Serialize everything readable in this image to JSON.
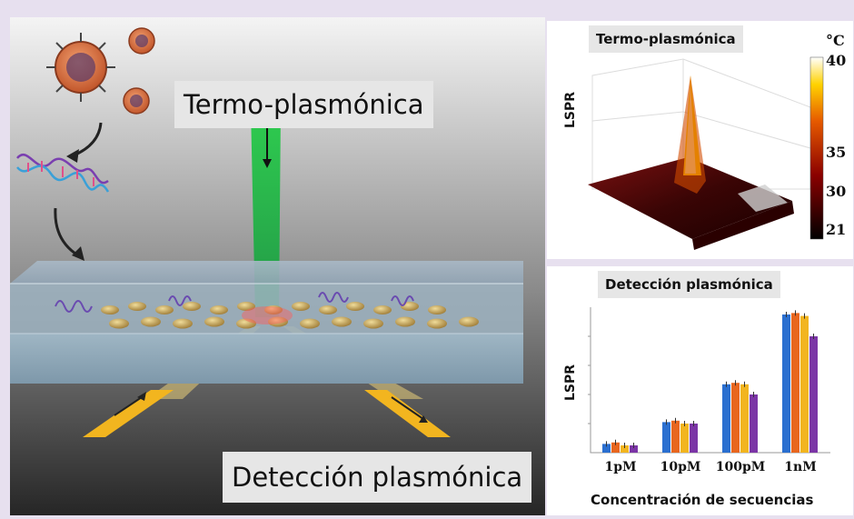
{
  "scene": {
    "title_top": "Termo-plasmónica",
    "title_bottom": "Detección plasmónica"
  },
  "panel_top": {
    "title": "Termo-plasmónica",
    "ylabel": "LSPR",
    "colorbar_unit": "°C",
    "colorbar_ticks": [
      "40",
      "35",
      "30",
      "21"
    ]
  },
  "panel_bottom": {
    "title": "Detección plasmónica",
    "ylabel": "LSPR",
    "xlabel": "Concentración de secuencias"
  },
  "chart_data": {
    "type": "bar",
    "title": "Detección plasmónica",
    "ylabel": "LSPR",
    "xlabel": "Concentración de secuencias",
    "categories": [
      "1pM",
      "10pM",
      "100pM",
      "1nM"
    ],
    "ylim": [
      0,
      1
    ],
    "series": [
      {
        "values": [
          0.06,
          0.21,
          0.47,
          0.95
        ],
        "color": "#2a6fd0"
      },
      {
        "values": [
          0.07,
          0.22,
          0.48,
          0.96
        ],
        "color": "#e8661f"
      },
      {
        "values": [
          0.05,
          0.2,
          0.47,
          0.94
        ],
        "color": "#f2b51f"
      },
      {
        "values": [
          0.05,
          0.2,
          0.4,
          0.8
        ],
        "color": "#7b35a6"
      }
    ]
  }
}
